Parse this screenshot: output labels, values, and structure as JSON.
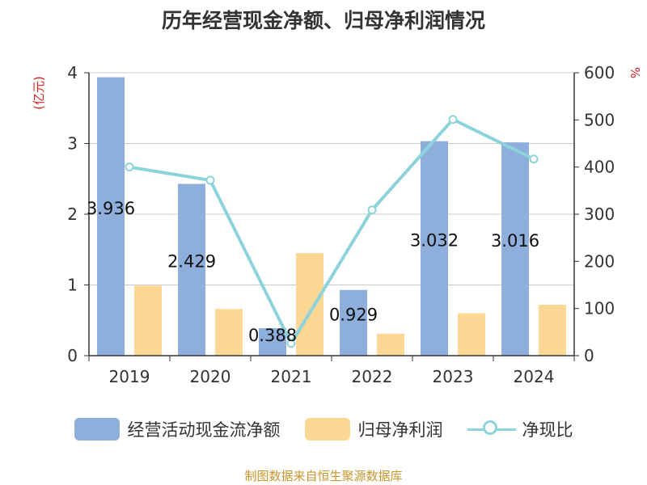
{
  "chart_data": {
    "type": "bar",
    "title": "历年经营现金净额、归母净利润情况",
    "categories": [
      "2019",
      "2020",
      "2021",
      "2022",
      "2023",
      "2024"
    ],
    "y_left": {
      "label": "(亿元)",
      "ticks": [
        "0",
        "1",
        "2",
        "3",
        "4"
      ],
      "lim": [
        0,
        4
      ]
    },
    "y_right": {
      "label": "%",
      "ticks": [
        "0",
        "100",
        "200",
        "300",
        "400",
        "500",
        "600"
      ],
      "lim": [
        0,
        600
      ]
    },
    "grid": true,
    "legend_position": "bottom",
    "series": [
      {
        "name": "经营活动现金流净额",
        "type": "bar",
        "axis": "left",
        "color": "#8eaedb",
        "values": [
          3.936,
          2.429,
          0.388,
          0.929,
          3.032,
          3.016
        ],
        "labels": [
          "3.936",
          "2.429",
          "0.388",
          "0.929",
          "3.032",
          "3.016"
        ]
      },
      {
        "name": "归母净利润",
        "type": "bar",
        "axis": "left",
        "color": "#fdd794",
        "values": [
          0.99,
          0.66,
          1.45,
          0.31,
          0.6,
          0.72
        ]
      },
      {
        "name": "净现比",
        "type": "line",
        "axis": "right",
        "color": "#8dd3db",
        "values": [
          400,
          372,
          26,
          309,
          501,
          417
        ]
      }
    ]
  },
  "source_note": "制图数据来自恒生聚源数据库"
}
